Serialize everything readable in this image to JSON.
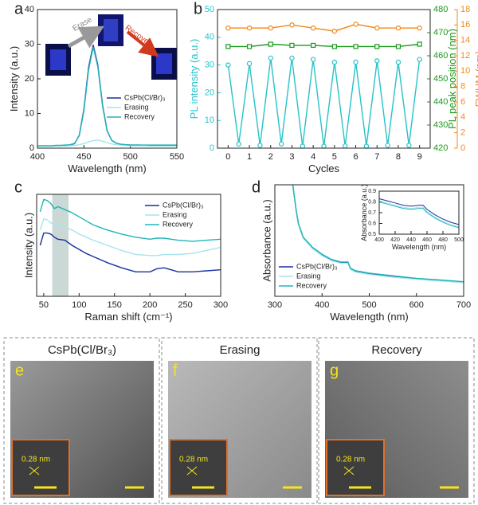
{
  "chart_data": [
    {
      "type": "line",
      "label": "a",
      "xlabel": "Wavelength (nm)",
      "ylabel": "Intensity (a.u.)",
      "xlim": [
        400,
        550
      ],
      "ylim": [
        0,
        40
      ],
      "xticks": [
        400,
        450,
        500,
        550
      ],
      "yticks": [
        0,
        10,
        20,
        30,
        40
      ],
      "annotations": [
        "Erase",
        "Recover"
      ],
      "x": [
        400,
        405,
        410,
        415,
        420,
        425,
        430,
        435,
        440,
        445,
        450,
        455,
        460,
        465,
        470,
        475,
        480,
        485,
        490,
        495,
        500,
        505,
        510,
        515,
        520,
        525,
        530,
        535,
        540,
        545,
        550
      ],
      "series": [
        {
          "name": "CsPb(Cl/Br)₃",
          "color": "#1a2fa0",
          "values": [
            0.6,
            0.6,
            0.6,
            0.6,
            0.7,
            0.7,
            0.8,
            0.9,
            1.3,
            3.7,
            11.2,
            23.3,
            29.8,
            24,
            12.5,
            5,
            2.2,
            1.4,
            1.1,
            1,
            0.9,
            0.9,
            0.9,
            0.8,
            0.8,
            0.8,
            0.8,
            0.8,
            0.8,
            0.8,
            0.8
          ]
        },
        {
          "name": "Erasing",
          "color": "#a8e4ec",
          "values": [
            0.5,
            0.5,
            0.5,
            0.5,
            0.6,
            0.6,
            0.6,
            0.7,
            0.8,
            1,
            1.3,
            1.8,
            2.2,
            2.3,
            2,
            1.6,
            1.2,
            1,
            0.9,
            0.8,
            0.7,
            0.7,
            0.7,
            0.7,
            0.6,
            0.6,
            0.6,
            0.6,
            0.6,
            0.6,
            0.6
          ]
        },
        {
          "name": "Recovery",
          "color": "#20b5b8",
          "values": [
            0.7,
            0.7,
            0.7,
            0.7,
            0.8,
            0.8,
            0.9,
            1,
            1.4,
            3.6,
            10.8,
            22.6,
            29.2,
            23.5,
            12.2,
            4.9,
            2.2,
            1.4,
            1.1,
            1,
            0.9,
            0.9,
            0.9,
            0.9,
            0.9,
            0.9,
            0.9,
            0.9,
            0.9,
            0.9,
            0.9
          ]
        }
      ]
    },
    {
      "type": "line",
      "label": "b",
      "xlabel": "Cycles",
      "ylabel": "PL intensity (a.u.)",
      "y2label": "PL peak position (nm)",
      "y3label": "FWHM (nm)",
      "xlim": [
        -0.5,
        9.5
      ],
      "ylim": [
        0,
        50
      ],
      "y2lim": [
        420,
        480
      ],
      "y3lim": [
        0,
        18
      ],
      "xticks": [
        0,
        1,
        2,
        3,
        4,
        5,
        6,
        7,
        8,
        9
      ],
      "yticks": [
        0,
        10,
        20,
        30,
        40,
        50
      ],
      "y2ticks": [
        420,
        430,
        440,
        450,
        460,
        470,
        480
      ],
      "y3ticks": [
        0,
        2,
        4,
        6,
        8,
        10,
        12,
        14,
        16,
        18
      ],
      "series": [
        {
          "color": "#27c3c8",
          "axis": "y",
          "marker": "circle",
          "x": [
            0,
            0.5,
            1,
            1.5,
            2,
            2.5,
            3,
            3.5,
            4,
            4.5,
            5,
            5.5,
            6,
            6.5,
            7,
            7.5,
            8,
            8.5,
            9
          ],
          "values": [
            30,
            1.5,
            30.5,
            1,
            32.5,
            1.5,
            32.5,
            0.7,
            32,
            0.7,
            31,
            0.8,
            31,
            0.7,
            31.5,
            1,
            31,
            1,
            32
          ]
        },
        {
          "color": "#1a9a1a",
          "axis": "y2",
          "marker": "square",
          "x": [
            0,
            1,
            2,
            3,
            4,
            5,
            6,
            7,
            8,
            9
          ],
          "values": [
            464,
            464,
            465,
            464.5,
            464.5,
            464,
            464,
            464,
            464,
            465
          ]
        },
        {
          "color": "#f08a1a",
          "axis": "y3",
          "marker": "circle",
          "x": [
            0,
            1,
            2,
            3,
            4,
            5,
            6,
            7,
            8,
            9
          ],
          "values": [
            15.6,
            15.6,
            15.6,
            16,
            15.6,
            15.2,
            16.1,
            15.6,
            15.6,
            15.6
          ]
        }
      ]
    },
    {
      "type": "line",
      "label": "c",
      "xlabel": "Raman shift (cm⁻¹)",
      "ylabel": "Intensity (a.u.)",
      "xlim": [
        40,
        300
      ],
      "ylim": [
        0,
        10
      ],
      "xticks": [
        50,
        100,
        150,
        200,
        250,
        300
      ],
      "highlight": [
        62,
        85
      ],
      "x": [
        45,
        50,
        55,
        60,
        65,
        70,
        80,
        90,
        100,
        110,
        120,
        140,
        160,
        180,
        200,
        210,
        220,
        230,
        240,
        260,
        280,
        300
      ],
      "series": [
        {
          "name": "CsPb(Cl/Br)₃",
          "color": "#1a2fa0",
          "values": [
            5,
            6.2,
            6.2,
            6.1,
            5.8,
            5.6,
            5.5,
            5,
            4.6,
            4.2,
            3.9,
            3.3,
            2.8,
            2.4,
            2.4,
            2.7,
            2.8,
            2.6,
            2.4,
            2.4,
            2.5,
            2.6
          ]
        },
        {
          "name": "Erasing",
          "color": "#a8e4ec",
          "values": [
            6.5,
            7.6,
            7.5,
            7.2,
            7,
            7.1,
            6.8,
            6.5,
            6.1,
            5.8,
            5.5,
            5,
            4.5,
            4.1,
            4,
            4,
            4.1,
            4.1,
            4.1,
            4.2,
            4.5,
            4.8
          ]
        },
        {
          "name": "Recovery",
          "color": "#20b5b8",
          "values": [
            8.3,
            9.5,
            9.4,
            9.1,
            8.6,
            8.8,
            8.5,
            8.2,
            7.8,
            7.4,
            7,
            6.5,
            6.1,
            5.8,
            5.6,
            5.7,
            5.7,
            5.6,
            5.5,
            5.4,
            5.5,
            5.6
          ]
        }
      ]
    },
    {
      "type": "line",
      "label": "d",
      "xlabel": "Wavelength (nm)",
      "ylabel": "Absorbance (a.u.)",
      "xlim": [
        300,
        700
      ],
      "ylim": [
        0,
        6.5
      ],
      "xticks": [
        300,
        400,
        500,
        600,
        700
      ],
      "x": [
        338,
        345,
        350,
        360,
        380,
        400,
        420,
        440,
        450,
        455,
        460,
        470,
        500,
        550,
        600,
        650,
        700
      ],
      "series": [
        {
          "name": "CsPb(Cl/Br)₃",
          "color": "#1a2fa0",
          "values": [
            6.5,
            5,
            4.2,
            3.4,
            2.8,
            2.4,
            2.1,
            1.95,
            1.95,
            1.95,
            1.6,
            1.45,
            1.3,
            1.15,
            1.02,
            0.92,
            0.82
          ]
        },
        {
          "name": "Erasing",
          "color": "#a8e4ec",
          "values": [
            6.5,
            4.95,
            4.15,
            3.37,
            2.77,
            2.37,
            2.07,
            1.92,
            1.92,
            1.92,
            1.57,
            1.42,
            1.27,
            1.12,
            0.99,
            0.89,
            0.8
          ]
        },
        {
          "name": "Recovery",
          "color": "#20b5b8",
          "values": [
            6.5,
            5.05,
            4.25,
            3.45,
            2.85,
            2.45,
            2.15,
            2,
            2,
            2,
            1.65,
            1.5,
            1.35,
            1.2,
            1.05,
            0.95,
            0.85
          ]
        }
      ],
      "inset": {
        "xlabel": "Wavelength (nm)",
        "ylabel": "Absorbance (a.u.)",
        "xlim": [
          400,
          500
        ],
        "ylim": [
          0.5,
          0.9
        ],
        "xticks": [
          400,
          420,
          440,
          460,
          480,
          500
        ],
        "yticks": [
          0.5,
          0.6,
          0.7,
          0.8,
          0.9
        ],
        "x": [
          400,
          410,
          420,
          430,
          440,
          450,
          455,
          460,
          470,
          480,
          490,
          500
        ],
        "series": [
          {
            "color": "#1a2fa0",
            "values": [
              0.83,
              0.81,
              0.79,
              0.77,
              0.76,
              0.77,
              0.77,
              0.73,
              0.68,
              0.64,
              0.61,
              0.59
            ]
          },
          {
            "color": "#a8e4ec",
            "values": [
              0.81,
              0.79,
              0.77,
              0.75,
              0.74,
              0.75,
              0.75,
              0.71,
              0.66,
              0.62,
              0.59,
              0.57
            ]
          },
          {
            "color": "#20b5b8",
            "values": [
              0.8,
              0.78,
              0.76,
              0.74,
              0.73,
              0.74,
              0.74,
              0.7,
              0.65,
              0.61,
              0.58,
              0.56
            ]
          }
        ]
      }
    }
  ],
  "images": [
    {
      "letter": "e",
      "title": "CsPb(Cl/Br₃)",
      "scale": "0.28 nm"
    },
    {
      "letter": "f",
      "title": "Erasing",
      "scale": "0.28 nm"
    },
    {
      "letter": "g",
      "title": "Recovery",
      "scale": "0.28 nm"
    }
  ]
}
